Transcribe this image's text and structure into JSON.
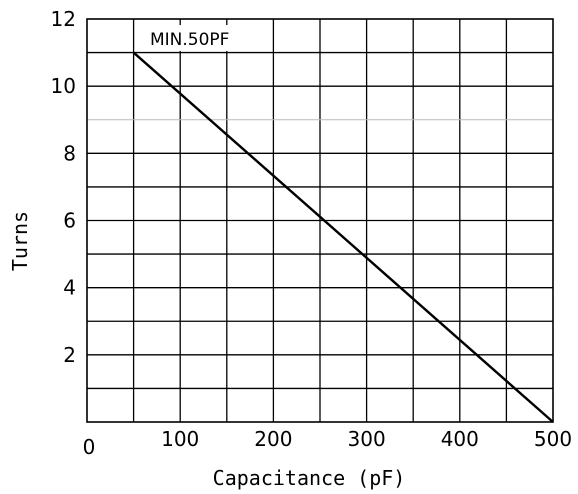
{
  "chart_data": {
    "type": "line",
    "title": "",
    "xlabel": "Capacitance (pF)",
    "ylabel": "Turns",
    "xlim": [
      0,
      500
    ],
    "ylim": [
      0,
      12
    ],
    "x_ticks": [
      0,
      100,
      200,
      300,
      400,
      500
    ],
    "x_tick_labels": [
      "0",
      "100",
      "200",
      "300",
      "400",
      "500"
    ],
    "y_ticks": [
      2,
      4,
      6,
      8,
      10,
      12
    ],
    "y_tick_labels": [
      "2",
      "4",
      "6",
      "8",
      "10",
      "12"
    ],
    "x_gridlines": [
      50,
      100,
      150,
      200,
      250,
      300,
      350,
      400,
      450
    ],
    "y_gridlines": [
      1,
      2,
      3,
      4,
      5,
      6,
      7,
      8,
      9,
      10,
      11
    ],
    "faint_y_gridlines": [
      9
    ],
    "grid": true,
    "annotation": "MIN.50PF",
    "series": [
      {
        "x": [
          50,
          500
        ],
        "y": [
          11,
          0
        ],
        "color": "#000000"
      }
    ]
  }
}
